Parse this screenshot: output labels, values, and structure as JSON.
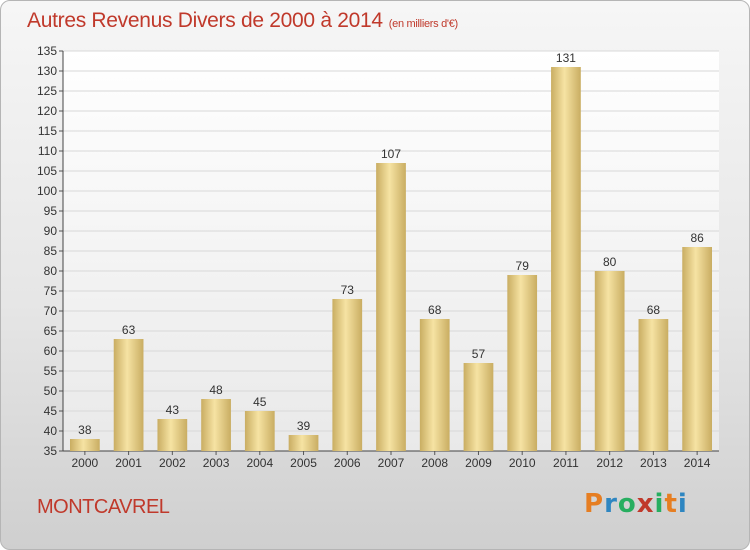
{
  "title": "Autres Revenus Divers de 2000 à 2014",
  "unit_note": "(en milliers d'€)",
  "location": "MONTCAVREL",
  "brand": {
    "letters": [
      "P",
      "r",
      "o",
      "x",
      "i",
      "t",
      "i"
    ],
    "colors": [
      "#e67e22",
      "#2e86c1",
      "#27ae60",
      "#c0392b",
      "#27ae60",
      "#e67e22",
      "#2e86c1"
    ]
  },
  "colors": {
    "bar": "#e8cf88",
    "bar_light": "#f6e3a3",
    "bar_dark": "#c9ad62",
    "title": "#c0392b"
  },
  "chart_data": {
    "type": "bar",
    "title": "Autres Revenus Divers de 2000 à 2014",
    "xlabel": "",
    "ylabel": "",
    "categories": [
      "2000",
      "2001",
      "2002",
      "2003",
      "2004",
      "2005",
      "2006",
      "2007",
      "2008",
      "2009",
      "2010",
      "2011",
      "2012",
      "2013",
      "2014"
    ],
    "values": [
      38,
      63,
      43,
      48,
      45,
      39,
      73,
      107,
      68,
      57,
      79,
      131,
      80,
      68,
      86
    ],
    "ylim": [
      35,
      135
    ],
    "yticks": [
      35,
      40,
      45,
      50,
      55,
      60,
      65,
      70,
      75,
      80,
      85,
      90,
      95,
      100,
      105,
      110,
      115,
      120,
      125,
      130,
      135
    ],
    "grid": true,
    "data_labels": true
  }
}
